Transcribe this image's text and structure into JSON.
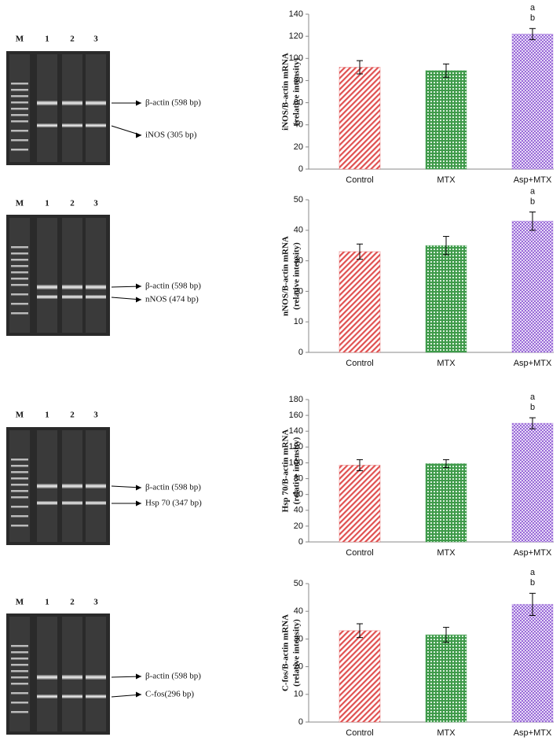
{
  "gels": [
    {
      "lanes": [
        "M",
        "1",
        "2",
        "3"
      ],
      "bands": [
        "β-actin (598 bp)",
        "iNOS (305 bp)"
      ]
    },
    {
      "lanes": [
        "M",
        "1",
        "2",
        "3"
      ],
      "bands": [
        "β-actin (598 bp)",
        "nNOS (474 bp)"
      ]
    },
    {
      "lanes": [
        "M",
        "1",
        "2",
        "3"
      ],
      "bands": [
        "β-actin (598 bp)",
        "Hsp 70 (347 bp)"
      ]
    },
    {
      "lanes": [
        "M",
        "1",
        "2",
        "3"
      ],
      "bands": [
        "β-actin (598 bp)",
        "C-fos(296 bp)"
      ]
    }
  ],
  "chart_data": [
    {
      "type": "bar",
      "ylabel": [
        "iNOS/B-actin mRNA",
        "(relative intensity)"
      ],
      "categories": [
        "Control",
        "MTX",
        "Asp+MTX"
      ],
      "values": [
        92,
        89,
        122
      ],
      "errors": [
        6,
        6,
        5
      ],
      "colors": [
        "#e05050",
        "#3f9a4a",
        "#9a6ad8"
      ],
      "value_annotations": [
        null,
        null,
        [
          "a",
          "b"
        ]
      ],
      "ylim": [
        0,
        140
      ],
      "yticks": [
        0,
        20,
        40,
        60,
        80,
        100,
        120,
        140
      ]
    },
    {
      "type": "bar",
      "ylabel": [
        "nNOS/B-actin mRNA",
        "(relative intensity)"
      ],
      "categories": [
        "Control",
        "MTX",
        "Asp+MTX"
      ],
      "values": [
        33,
        35,
        43
      ],
      "errors": [
        2.5,
        3,
        3
      ],
      "colors": [
        "#e05050",
        "#3f9a4a",
        "#9a6ad8"
      ],
      "value_annotations": [
        null,
        null,
        [
          "a",
          "b"
        ]
      ],
      "ylim": [
        0,
        50
      ],
      "yticks": [
        0,
        10,
        20,
        30,
        40,
        50
      ]
    },
    {
      "type": "bar",
      "ylabel": [
        "Hsp 70/B-actin mRNA",
        "(relative intensity)"
      ],
      "categories": [
        "Control",
        "MTX",
        "Asp+MTX"
      ],
      "values": [
        97,
        99,
        150
      ],
      "errors": [
        7,
        5,
        7
      ],
      "colors": [
        "#e05050",
        "#3f9a4a",
        "#9a6ad8"
      ],
      "value_annotations": [
        null,
        null,
        [
          "a",
          "b"
        ]
      ],
      "ylim": [
        0,
        180
      ],
      "yticks": [
        0,
        20,
        40,
        60,
        80,
        100,
        120,
        140,
        160,
        180
      ]
    },
    {
      "type": "bar",
      "ylabel": [
        "C-fos/B-actin mRNA",
        "(relative intensity)"
      ],
      "categories": [
        "Control",
        "MTX",
        "Asp+MTX"
      ],
      "values": [
        33,
        31.5,
        42.5
      ],
      "errors": [
        2.5,
        2.7,
        4
      ],
      "colors": [
        "#e05050",
        "#3f9a4a",
        "#9a6ad8"
      ],
      "value_annotations": [
        null,
        null,
        [
          "a",
          "b"
        ]
      ],
      "ylim": [
        0,
        50
      ],
      "yticks": [
        0,
        10,
        20,
        30,
        40,
        50
      ]
    }
  ]
}
